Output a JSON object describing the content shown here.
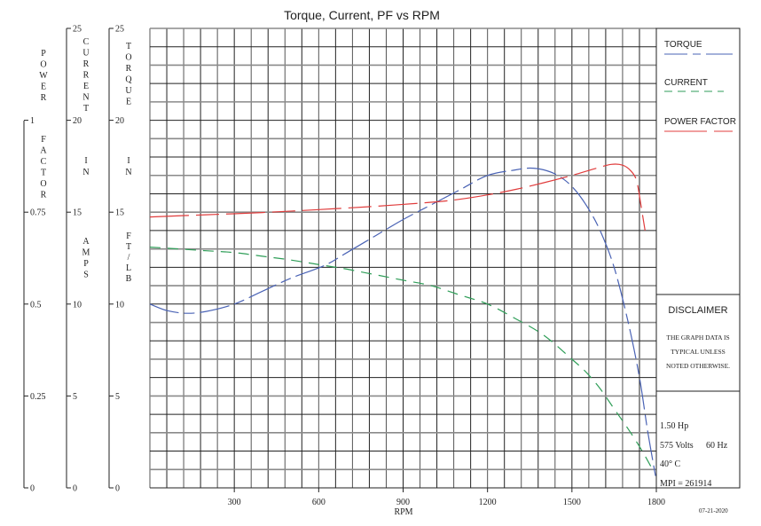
{
  "chart_data": {
    "type": "line",
    "title": "Torque, Current, PF vs RPM",
    "xlabel": "RPM",
    "xlim": [
      0,
      1800
    ],
    "x_ticks": [
      300,
      600,
      900,
      1200,
      1500,
      1800
    ],
    "grid": true,
    "axes": [
      {
        "id": "pf",
        "label": "POWER FACTOR",
        "ticks": [
          "0",
          "0.25",
          "0.5",
          "0.75",
          "1"
        ],
        "range": [
          0,
          1.25
        ]
      },
      {
        "id": "current",
        "label": "CURRENT IN AMPS",
        "ticks": [
          "0",
          "5",
          "10",
          "15",
          "20",
          "25"
        ],
        "range": [
          0,
          25
        ]
      },
      {
        "id": "torque",
        "label": "TORQUE IN FT/LB",
        "ticks": [
          "0",
          "5",
          "10",
          "15",
          "20",
          "25"
        ],
        "range": [
          0,
          25
        ]
      }
    ],
    "series": [
      {
        "name": "TORQUE",
        "axis": "torque",
        "color": "#4a63b5",
        "x": [
          0,
          60,
          130,
          200,
          300,
          400,
          500,
          620,
          700,
          800,
          900,
          1000,
          1100,
          1200,
          1300,
          1350,
          1400,
          1450,
          1500,
          1550,
          1600,
          1650,
          1700,
          1740,
          1770,
          1800
        ],
        "y": [
          10.0,
          9.65,
          9.5,
          9.6,
          10.0,
          10.7,
          11.4,
          12.1,
          12.8,
          13.7,
          14.6,
          15.4,
          16.2,
          17.0,
          17.3,
          17.4,
          17.3,
          17.0,
          16.4,
          15.4,
          14.0,
          12.0,
          9.0,
          6.0,
          3.0,
          0.4
        ]
      },
      {
        "name": "CURRENT",
        "axis": "current",
        "color": "#2f9e58",
        "x": [
          0,
          100,
          200,
          300,
          400,
          500,
          620,
          700,
          800,
          900,
          1000,
          1100,
          1200,
          1300,
          1400,
          1500,
          1550,
          1600,
          1650,
          1700,
          1750,
          1790
        ],
        "y": [
          13.1,
          13.0,
          12.9,
          12.8,
          12.6,
          12.4,
          12.1,
          11.9,
          11.6,
          11.3,
          11.0,
          10.5,
          10.0,
          9.2,
          8.3,
          7.0,
          6.3,
          5.4,
          4.3,
          3.2,
          2.0,
          0.9
        ]
      },
      {
        "name": "POWER FACTOR",
        "axis": "pf",
        "color": "#e03c3c",
        "x": [
          0,
          200,
          400,
          600,
          800,
          1000,
          1100,
          1200,
          1300,
          1400,
          1500,
          1580,
          1640,
          1680,
          1710,
          1730,
          1745,
          1760
        ],
        "y": [
          0.737,
          0.743,
          0.749,
          0.757,
          0.766,
          0.777,
          0.785,
          0.797,
          0.812,
          0.83,
          0.85,
          0.868,
          0.88,
          0.878,
          0.862,
          0.835,
          0.77,
          0.7
        ]
      }
    ],
    "legend": {
      "position": "right",
      "entries": [
        "TORQUE",
        "CURRENT",
        "POWER FACTOR"
      ]
    }
  },
  "title": "Torque, Current, PF vs RPM",
  "xaxis": {
    "label": "RPM",
    "ticks": [
      "300",
      "600",
      "900",
      "1200",
      "1500",
      "1800"
    ]
  },
  "yaxes": {
    "pf": {
      "label_top": [
        "P",
        "O",
        "W",
        "E",
        "R"
      ],
      "label_mid": [
        "F",
        "A",
        "C",
        "T",
        "O",
        "R"
      ],
      "ticks": [
        "1",
        "0.75",
        "0.5",
        "0.25",
        "0"
      ]
    },
    "current": {
      "label_top": [
        "C",
        "U",
        "R",
        "R",
        "E",
        "N",
        "T"
      ],
      "label_mid": [
        "I",
        "N"
      ],
      "label_bot": [
        "A",
        "M",
        "P",
        "S"
      ],
      "ticks": [
        "25",
        "20",
        "15",
        "10",
        "5",
        "0"
      ]
    },
    "torque": {
      "label_top": [
        "T",
        "O",
        "R",
        "Q",
        "U",
        "E"
      ],
      "label_mid": [
        "I",
        "N"
      ],
      "label_bot": [
        "F",
        "T",
        "/",
        "L",
        "B"
      ],
      "ticks": [
        "25",
        "20",
        "15",
        "10",
        "5",
        "0"
      ]
    }
  },
  "legend": {
    "torque": "TORQUE",
    "current": "CURRENT",
    "power_factor": "POWER FACTOR"
  },
  "colors": {
    "torque": "#4a63b5",
    "current": "#2f9e58",
    "power_factor": "#e03c3c",
    "grid_dark": "#222222",
    "grid_light": "#8a8a8a"
  },
  "disclaimer": {
    "heading": "DISCLAIMER",
    "lines": [
      "THE GRAPH DATA IS",
      "TYPICAL UNLESS",
      "NOTED OTHERWISE."
    ]
  },
  "specs": {
    "hp": "1.50 Hp",
    "volts": "575 Volts",
    "hz": "60 Hz",
    "temp": "40° C",
    "mpi": "MPI = 261914"
  },
  "date": "07-21-2020"
}
